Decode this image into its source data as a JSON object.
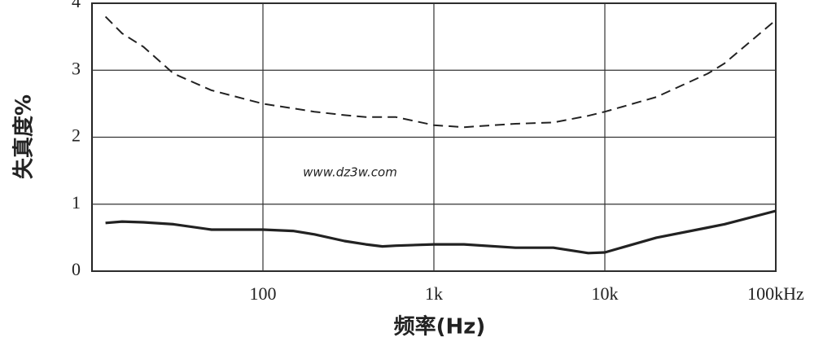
{
  "chart_data": {
    "type": "line",
    "ylabel": "失真度%",
    "xlabel": "频率(Hz)",
    "annotation": "www.dz3w.com",
    "xlog": true,
    "grid": true,
    "xlim": [
      10,
      100000
    ],
    "xticks": [
      100,
      {
        "value": 1000,
        "label": "1k"
      },
      {
        "value": 10000,
        "label": "10k"
      },
      {
        "value": 100000,
        "label": "100kHz"
      }
    ],
    "ylim": [
      0,
      4
    ],
    "yticks": [
      0,
      1,
      2,
      3,
      4
    ],
    "x": [
      12,
      15,
      20,
      30,
      50,
      100,
      150,
      200,
      300,
      400,
      500,
      600,
      1000,
      1500,
      3000,
      5000,
      8000,
      10000,
      20000,
      40000,
      50000,
      100000
    ],
    "series": [
      {
        "color": "#222222",
        "dashed": true,
        "values": [
          3.8,
          3.55,
          3.35,
          2.95,
          2.7,
          2.5,
          2.43,
          2.38,
          2.33,
          2.3,
          2.3,
          2.3,
          2.18,
          2.15,
          2.2,
          2.22,
          2.32,
          2.38,
          2.6,
          2.95,
          3.1,
          3.75
        ]
      },
      {
        "color": "#222222",
        "dashed": false,
        "values": [
          0.72,
          0.74,
          0.73,
          0.7,
          0.62,
          0.62,
          0.6,
          0.55,
          0.45,
          0.4,
          0.37,
          0.38,
          0.4,
          0.4,
          0.35,
          0.35,
          0.27,
          0.28,
          0.5,
          0.65,
          0.7,
          0.9
        ]
      }
    ]
  }
}
